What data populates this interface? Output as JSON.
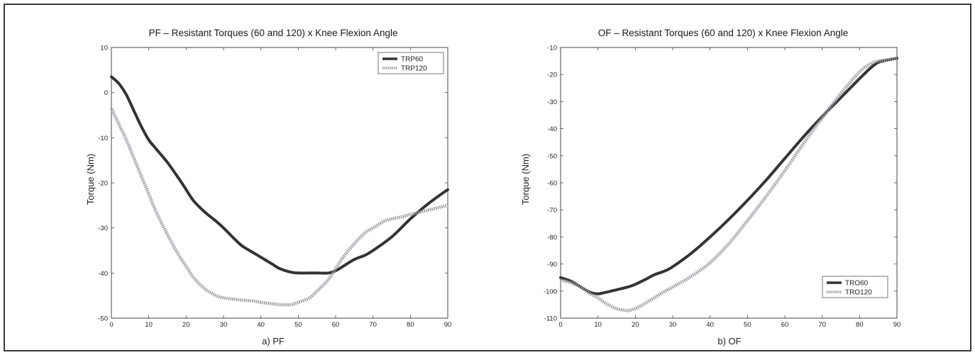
{
  "colors": {
    "series_a": "#333333",
    "series_b": "#9a9aa2",
    "axis": "#444444"
  },
  "chart_data": [
    {
      "type": "line",
      "title": "PF – Resistant Torques (60 and 120) x Knee Flexion Angle",
      "xlabel": "a) PF",
      "ylabel": "Torque (Nm)",
      "xlim": [
        0,
        90
      ],
      "ylim": [
        -50,
        10
      ],
      "xticks": [
        0,
        10,
        20,
        30,
        40,
        50,
        60,
        70,
        80,
        90
      ],
      "yticks": [
        10,
        0,
        -10,
        -20,
        -30,
        -40,
        -50
      ],
      "grid": false,
      "legend_position": "top-right",
      "series": [
        {
          "name": "TRP60",
          "style": "solid",
          "x": [
            0,
            2,
            4,
            6,
            8,
            10,
            12,
            15,
            18,
            20,
            22,
            25,
            28,
            30,
            33,
            35,
            38,
            40,
            43,
            45,
            48,
            50,
            53,
            55,
            58,
            60,
            62,
            65,
            68,
            70,
            75,
            80,
            85,
            90
          ],
          "y": [
            3.5,
            2.0,
            -0.5,
            -4.0,
            -7.5,
            -10.5,
            -12.5,
            -15.5,
            -19.0,
            -21.5,
            -24.0,
            -26.5,
            -28.5,
            -30.0,
            -32.5,
            -34.0,
            -35.5,
            -36.5,
            -38.0,
            -39.0,
            -39.8,
            -40.0,
            -40.0,
            -40.0,
            -40.0,
            -39.5,
            -38.5,
            -37.0,
            -36.0,
            -35.0,
            -32.0,
            -28.0,
            -24.5,
            -21.5
          ]
        },
        {
          "name": "TRP120",
          "style": "dotted",
          "x": [
            0,
            2,
            4,
            6,
            8,
            10,
            12,
            15,
            18,
            20,
            22,
            25,
            28,
            30,
            33,
            35,
            38,
            40,
            43,
            45,
            48,
            50,
            53,
            55,
            58,
            60,
            62,
            65,
            68,
            70,
            73,
            75,
            78,
            80,
            85,
            90
          ],
          "y": [
            -3.5,
            -7.0,
            -10.5,
            -14.5,
            -18.5,
            -22.5,
            -26.5,
            -31.5,
            -36.0,
            -38.5,
            -41.0,
            -43.5,
            -45.0,
            -45.5,
            -45.8,
            -46.0,
            -46.2,
            -46.5,
            -46.8,
            -47.0,
            -47.0,
            -46.5,
            -45.5,
            -44.0,
            -41.5,
            -39.0,
            -36.5,
            -33.5,
            -31.0,
            -30.0,
            -28.5,
            -28.0,
            -27.5,
            -27.0,
            -26.0,
            -25.0
          ]
        }
      ]
    },
    {
      "type": "line",
      "title": "OF – Resistant Torques (60 and 120) x Knee Flexion Angle",
      "xlabel": "b) OF",
      "ylabel": "Torque (Nm)",
      "xlim": [
        0,
        90
      ],
      "ylim": [
        -110,
        -10
      ],
      "xticks": [
        0,
        10,
        20,
        30,
        40,
        50,
        60,
        70,
        80,
        90
      ],
      "yticks": [
        -10,
        -20,
        -30,
        -40,
        -50,
        -60,
        -70,
        -80,
        -90,
        -100,
        -110
      ],
      "grid": false,
      "legend_position": "bottom-right",
      "series": [
        {
          "name": "TRO60",
          "style": "solid",
          "x": [
            0,
            3,
            6,
            8,
            10,
            12,
            15,
            18,
            20,
            23,
            25,
            28,
            30,
            35,
            40,
            45,
            50,
            55,
            60,
            65,
            70,
            75,
            80,
            83,
            85,
            88,
            90
          ],
          "y": [
            -95.0,
            -96.5,
            -99.0,
            -100.5,
            -101.0,
            -100.5,
            -99.5,
            -98.5,
            -97.5,
            -95.5,
            -94.0,
            -92.5,
            -91.0,
            -86.0,
            -80.0,
            -73.5,
            -66.5,
            -59.0,
            -51.0,
            -43.0,
            -35.5,
            -28.5,
            -21.5,
            -17.5,
            -15.5,
            -14.5,
            -14.0
          ]
        },
        {
          "name": "TRO120",
          "style": "dotted",
          "x": [
            0,
            3,
            6,
            8,
            10,
            12,
            15,
            17,
            18,
            20,
            22,
            25,
            28,
            30,
            35,
            40,
            45,
            50,
            55,
            60,
            65,
            70,
            75,
            80,
            83,
            85,
            88,
            90
          ],
          "y": [
            -96.0,
            -97.0,
            -99.0,
            -101.0,
            -102.5,
            -104.5,
            -106.5,
            -107.0,
            -107.2,
            -106.5,
            -105.0,
            -102.5,
            -100.0,
            -98.5,
            -94.5,
            -89.5,
            -82.5,
            -74.0,
            -65.0,
            -55.5,
            -45.5,
            -36.0,
            -27.0,
            -19.0,
            -16.0,
            -15.0,
            -14.5,
            -14.0
          ]
        }
      ]
    }
  ]
}
